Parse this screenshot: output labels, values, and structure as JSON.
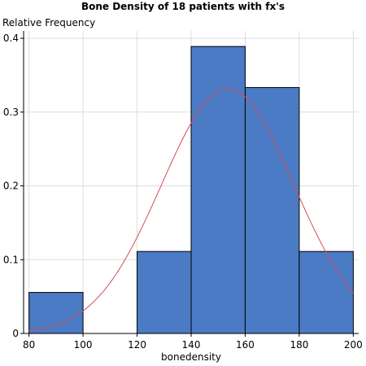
{
  "chart_data": {
    "type": "bar",
    "title": "Bone Density of 18 patients with fx's",
    "xlabel": "bonedensity",
    "ylabel": "Relative Frequency",
    "xlim": [
      78,
      202
    ],
    "ylim": [
      0,
      0.41
    ],
    "xticks": [
      80,
      100,
      120,
      140,
      160,
      180,
      200
    ],
    "yticks": [
      0,
      0.1,
      0.2,
      0.3,
      0.4
    ],
    "ytick_labels": [
      "0",
      "0.1",
      "0.2",
      "0.3",
      "0.4"
    ],
    "grid": true,
    "bins": [
      {
        "start": 80,
        "end": 100,
        "value": 0.0556
      },
      {
        "start": 100,
        "end": 120,
        "value": 0
      },
      {
        "start": 120,
        "end": 140,
        "value": 0.1111
      },
      {
        "start": 140,
        "end": 160,
        "value": 0.3889
      },
      {
        "start": 160,
        "end": 180,
        "value": 0.3333
      },
      {
        "start": 180,
        "end": 200,
        "value": 0.1111
      }
    ],
    "curve": {
      "type": "normal",
      "mean": 153.5,
      "sd": 24.5,
      "peak": 0.332
    },
    "colors": {
      "bar": "#4a7bc4",
      "bar_edge": "#000000",
      "curve": "#d94a5a",
      "grid": "#dddddd"
    }
  }
}
